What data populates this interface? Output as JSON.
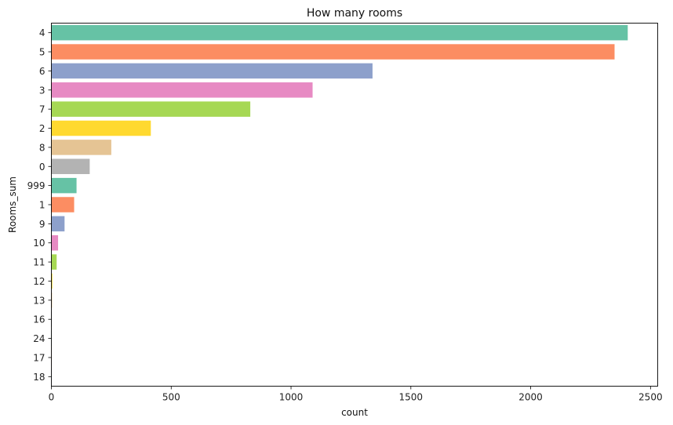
{
  "chart_data": {
    "type": "bar",
    "orientation": "horizontal",
    "title": "How many rooms",
    "xlabel": "count",
    "ylabel": "Rooms_sum",
    "categories": [
      "4",
      "5",
      "6",
      "3",
      "7",
      "2",
      "8",
      "0",
      "999",
      "1",
      "9",
      "10",
      "11",
      "12",
      "13",
      "16",
      "24",
      "17",
      "18"
    ],
    "values": [
      2405,
      2350,
      1340,
      1090,
      830,
      415,
      250,
      160,
      105,
      95,
      55,
      28,
      22,
      4,
      3,
      2,
      1,
      1,
      1
    ],
    "xlim": [
      0,
      2530
    ],
    "xticks": [
      0,
      500,
      1000,
      1500,
      2000,
      2500
    ],
    "grid": false,
    "legend": "none",
    "colors": [
      "#66c2a5",
      "#fc8d62",
      "#8da0cb",
      "#e78ac3",
      "#a6d854",
      "#ffd92f",
      "#e5c494",
      "#b3b3b3"
    ]
  }
}
